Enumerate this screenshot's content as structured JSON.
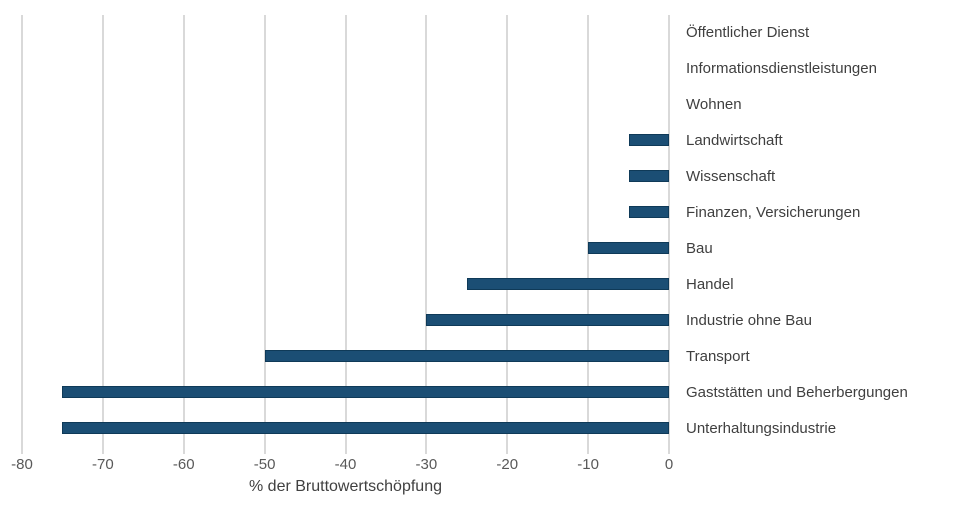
{
  "chart_data": {
    "type": "bar",
    "orientation": "horizontal",
    "title": "",
    "xlabel": "% der Bruttowertschöpfung",
    "ylabel": "",
    "xlim": [
      -80,
      0
    ],
    "xticks": [
      -80,
      -70,
      -60,
      -50,
      -40,
      -30,
      -20,
      -10,
      0
    ],
    "grid": true,
    "categories": [
      "Öffentlicher Dienst",
      "Informationsdienstleistungen",
      "Wohnen",
      "Landwirtschaft",
      "Wissenschaft",
      "Finanzen, Versicherungen",
      "Bau",
      "Handel",
      "Industrie ohne Bau",
      "Transport",
      "Gaststätten und Beherbergungen",
      "Unterhaltungsindustrie"
    ],
    "values": [
      0,
      0,
      0,
      -5,
      -5,
      -5,
      -10,
      -25,
      -30,
      -50,
      -75,
      -75
    ],
    "colors": {
      "bar_fill": "#1b4e74",
      "bar_border": "#0f3a58",
      "gridline": "#d9d9d9",
      "tick_label": "#595959",
      "category_label": "#3f3f3f",
      "axis_title": "#404040"
    }
  }
}
